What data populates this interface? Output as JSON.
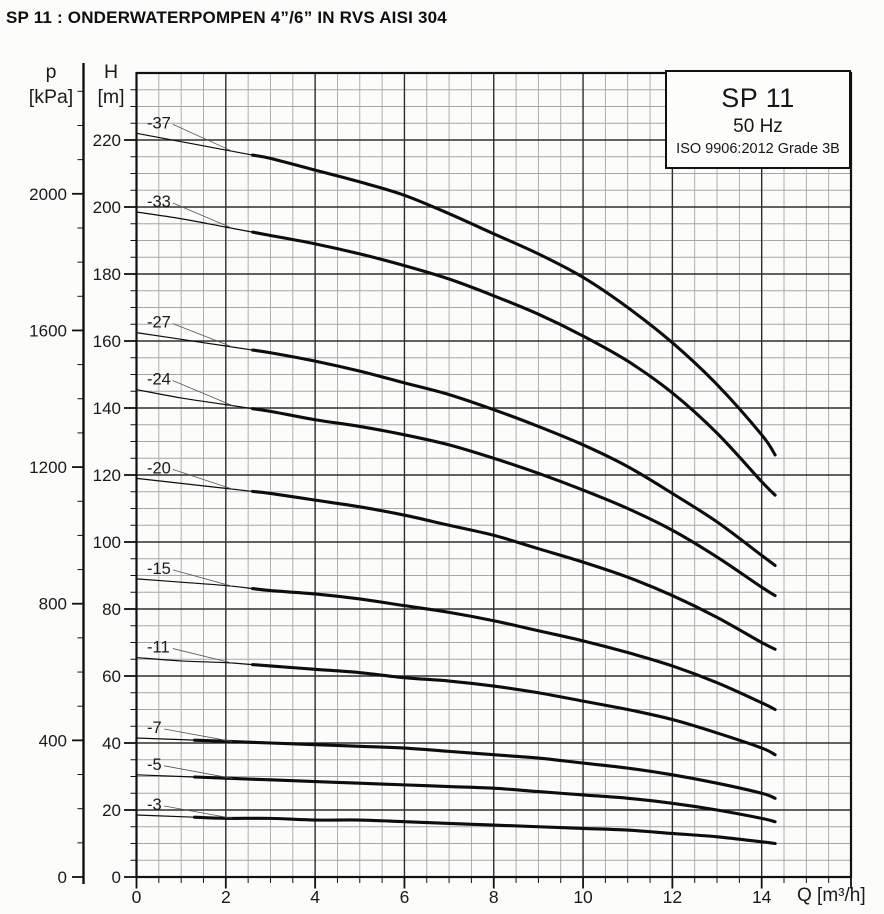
{
  "page": {
    "title": "SP 11 : ONDERWATERPOMPEN 4”/6” IN RVS AISI 304"
  },
  "info_box": {
    "model": "SP 11",
    "frequency": "50 Hz",
    "standard": "ISO 9906:2012 Grade 3B"
  },
  "axes": {
    "pressure": {
      "symbol": "p",
      "unit": "[kPa]",
      "ticks": [
        0,
        400,
        800,
        1200,
        1600,
        2000
      ]
    },
    "head": {
      "symbol": "H",
      "unit": "[m]",
      "ticks": [
        0,
        20,
        40,
        60,
        80,
        100,
        120,
        140,
        160,
        180,
        200,
        220
      ]
    },
    "flow": {
      "label": "Q [m³/h]",
      "ticks": [
        0,
        2,
        4,
        6,
        8,
        10,
        12,
        14
      ]
    }
  },
  "chart_data": {
    "type": "line",
    "title": "SP 11 pump performance curves (head vs flow)",
    "xlabel": "Q [m³/h]",
    "ylabel": "H [m]",
    "y2label": "p [kPa]",
    "xlim": [
      0,
      16
    ],
    "ylim": [
      0,
      240
    ],
    "p_lim": [
      0,
      2340
    ],
    "x_major_step": 2,
    "x_minor_step": 0.5,
    "y_major_step": 20,
    "y_minor_step": 5,
    "p_major_step": 400,
    "p_minor_step": 100,
    "grid": true,
    "legend_position": "curve-start-labels",
    "series": [
      {
        "name": "-37",
        "thin_until": 2.6,
        "points": [
          [
            0,
            222
          ],
          [
            1,
            219.5
          ],
          [
            2,
            217
          ],
          [
            3,
            214.5
          ],
          [
            4,
            211
          ],
          [
            5,
            207.5
          ],
          [
            6,
            203.5
          ],
          [
            7,
            198
          ],
          [
            8,
            192
          ],
          [
            9,
            186
          ],
          [
            10,
            179
          ],
          [
            11,
            170
          ],
          [
            12,
            159.5
          ],
          [
            13,
            147
          ],
          [
            14,
            132
          ],
          [
            14.3,
            126
          ]
        ]
      },
      {
        "name": "-33",
        "thin_until": 2.6,
        "points": [
          [
            0,
            198.5
          ],
          [
            1,
            196.5
          ],
          [
            2,
            194
          ],
          [
            3,
            191.5
          ],
          [
            4,
            189
          ],
          [
            5,
            186
          ],
          [
            6,
            182.5
          ],
          [
            7,
            178.5
          ],
          [
            8,
            173.5
          ],
          [
            9,
            168
          ],
          [
            10,
            161.5
          ],
          [
            11,
            154
          ],
          [
            12,
            144.5
          ],
          [
            13,
            132.5
          ],
          [
            14,
            118
          ],
          [
            14.3,
            114
          ]
        ]
      },
      {
        "name": "-27",
        "thin_until": 2.6,
        "points": [
          [
            0,
            162.5
          ],
          [
            1,
            160.5
          ],
          [
            2,
            158.5
          ],
          [
            3,
            156.5
          ],
          [
            4,
            154
          ],
          [
            5,
            151
          ],
          [
            6,
            147.5
          ],
          [
            7,
            144
          ],
          [
            8,
            139.5
          ],
          [
            9,
            134.5
          ],
          [
            10,
            129
          ],
          [
            11,
            122.5
          ],
          [
            12,
            114.5
          ],
          [
            13,
            106
          ],
          [
            14,
            96
          ],
          [
            14.3,
            93
          ]
        ]
      },
      {
        "name": "-24",
        "thin_until": 2.6,
        "points": [
          [
            0,
            145.5
          ],
          [
            1,
            143
          ],
          [
            2,
            141
          ],
          [
            3,
            139
          ],
          [
            4,
            136.5
          ],
          [
            5,
            134.5
          ],
          [
            6,
            132
          ],
          [
            7,
            129
          ],
          [
            8,
            125
          ],
          [
            9,
            120.5
          ],
          [
            10,
            115.5
          ],
          [
            11,
            110
          ],
          [
            12,
            103.5
          ],
          [
            13,
            95.5
          ],
          [
            14,
            86.5
          ],
          [
            14.3,
            84
          ]
        ]
      },
      {
        "name": "-20",
        "thin_until": 2.6,
        "points": [
          [
            0,
            119
          ],
          [
            1,
            117.5
          ],
          [
            2,
            116
          ],
          [
            3,
            114.5
          ],
          [
            4,
            112.5
          ],
          [
            5,
            110.5
          ],
          [
            6,
            108
          ],
          [
            7,
            105
          ],
          [
            8,
            102
          ],
          [
            9,
            98
          ],
          [
            10,
            94
          ],
          [
            11,
            89.5
          ],
          [
            12,
            84
          ],
          [
            13,
            77.5
          ],
          [
            14,
            70
          ],
          [
            14.3,
            68
          ]
        ]
      },
      {
        "name": "-15",
        "thin_until": 2.6,
        "points": [
          [
            0,
            89
          ],
          [
            1,
            88
          ],
          [
            2,
            87
          ],
          [
            3,
            85.5
          ],
          [
            4,
            84.5
          ],
          [
            5,
            83
          ],
          [
            6,
            81
          ],
          [
            7,
            79
          ],
          [
            8,
            76.5
          ],
          [
            9,
            73.5
          ],
          [
            10,
            70.5
          ],
          [
            11,
            67
          ],
          [
            12,
            63
          ],
          [
            13,
            58
          ],
          [
            14,
            52
          ],
          [
            14.3,
            50
          ]
        ]
      },
      {
        "name": "-11",
        "thin_until": 2.6,
        "points": [
          [
            0,
            65.5
          ],
          [
            1,
            64.5
          ],
          [
            2,
            64
          ],
          [
            3,
            63
          ],
          [
            4,
            62
          ],
          [
            5,
            61
          ],
          [
            6,
            59.5
          ],
          [
            7,
            58.5
          ],
          [
            8,
            57
          ],
          [
            9,
            55
          ],
          [
            10,
            52.5
          ],
          [
            11,
            50
          ],
          [
            12,
            47
          ],
          [
            13,
            43
          ],
          [
            14,
            38.5
          ],
          [
            14.3,
            36.5
          ]
        ]
      },
      {
        "name": "-7",
        "thin_until": 1.3,
        "points": [
          [
            0,
            41.5
          ],
          [
            1,
            41
          ],
          [
            2,
            40.5
          ],
          [
            3,
            40
          ],
          [
            4,
            39.5
          ],
          [
            5,
            39
          ],
          [
            6,
            38.5
          ],
          [
            7,
            37.5
          ],
          [
            8,
            36.5
          ],
          [
            9,
            35.5
          ],
          [
            10,
            34
          ],
          [
            11,
            32.5
          ],
          [
            12,
            30.5
          ],
          [
            13,
            28
          ],
          [
            14,
            25
          ],
          [
            14.3,
            23.5
          ]
        ]
      },
      {
        "name": "-5",
        "thin_until": 1.3,
        "points": [
          [
            0,
            30.5
          ],
          [
            1,
            30
          ],
          [
            2,
            29.5
          ],
          [
            3,
            29
          ],
          [
            4,
            28.5
          ],
          [
            5,
            28
          ],
          [
            6,
            27.5
          ],
          [
            7,
            27
          ],
          [
            8,
            26.5
          ],
          [
            9,
            25.5
          ],
          [
            10,
            24.5
          ],
          [
            11,
            23.5
          ],
          [
            12,
            22
          ],
          [
            13,
            20
          ],
          [
            14,
            17.5
          ],
          [
            14.3,
            16.5
          ]
        ]
      },
      {
        "name": "-3",
        "thin_until": 1.3,
        "points": [
          [
            0,
            18.5
          ],
          [
            1,
            18
          ],
          [
            2,
            17.5
          ],
          [
            3,
            17.5
          ],
          [
            4,
            17
          ],
          [
            5,
            17
          ],
          [
            6,
            16.5
          ],
          [
            7,
            16
          ],
          [
            8,
            15.5
          ],
          [
            9,
            15
          ],
          [
            10,
            14.5
          ],
          [
            11,
            14
          ],
          [
            12,
            13
          ],
          [
            13,
            12
          ],
          [
            14,
            10.5
          ],
          [
            14.3,
            10
          ]
        ]
      }
    ]
  }
}
